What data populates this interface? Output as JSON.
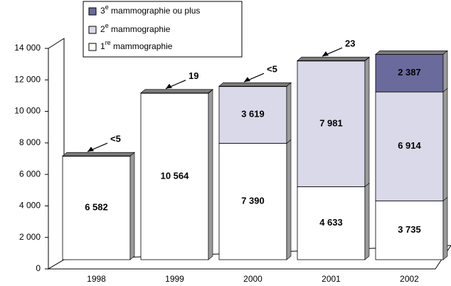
{
  "chart_data": {
    "type": "bar3d_stacked",
    "categories": [
      "1998",
      "1999",
      "2000",
      "2001",
      "2002"
    ],
    "series": [
      {
        "name": "1re mammographie",
        "color": "#ffffff",
        "values": [
          6582,
          10564,
          7390,
          4633,
          3735
        ],
        "value_labels": [
          "6 582",
          "10 564",
          "7 390",
          "4 633",
          "3 735"
        ]
      },
      {
        "name": "2e mammographie",
        "color": "#d9d9e9",
        "values": [
          3,
          19,
          3619,
          7981,
          6914
        ],
        "value_labels": [
          "<5",
          "19",
          "3 619",
          "7 981",
          "6 914"
        ]
      },
      {
        "name": "3e mammographie ou plus",
        "color": "#6a6a9c",
        "values": [
          null,
          null,
          3,
          23,
          2387
        ],
        "value_labels": [
          null,
          null,
          "<5",
          "23",
          "2 387"
        ]
      }
    ],
    "ylim": [
      0,
      14000
    ],
    "yticks": [
      0,
      {
        "value": 2000,
        "label": "2 000"
      },
      {
        "value": 4000,
        "label": "4 000"
      },
      {
        "value": 6000,
        "label": "6 000"
      },
      {
        "value": 8000,
        "label": "8 000"
      },
      {
        "value": 10000,
        "label": "10 000"
      },
      {
        "value": 12000,
        "label": "12 000"
      },
      {
        "value": 14000,
        "label": "14 000"
      }
    ],
    "legend": "top"
  }
}
